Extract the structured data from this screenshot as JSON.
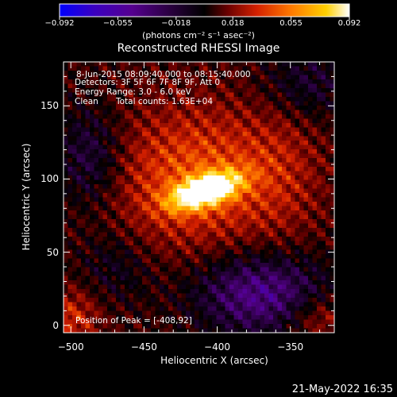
{
  "colorbar": {
    "min_label": "−0.092",
    "tick_labels": [
      "−0.092",
      "−0.055",
      "−0.018",
      "0.018",
      "0.055",
      "0.092"
    ],
    "tick_values": [
      -0.092,
      -0.055,
      -0.018,
      0.018,
      0.055,
      0.092
    ],
    "unit_label": "(photons cm⁻² s⁻¹ asec⁻²)",
    "palette": [
      "#0000ff",
      "#3b00c0",
      "#55008f",
      "#2a0040",
      "#000000",
      "#6a0000",
      "#d42000",
      "#ff7a00",
      "#ffd000",
      "#ffffff"
    ]
  },
  "chart_data": {
    "type": "heatmap",
    "title": "Reconstructed RHESSI Image",
    "xlabel": "Heliocentric X (arcsec)",
    "ylabel": "Heliocentric Y (arcsec)",
    "xlim": [
      -505,
      -320
    ],
    "ylim": [
      -5,
      180
    ],
    "x_ticks": [
      -500,
      -450,
      -400,
      -350
    ],
    "x_tick_labels": [
      "−500",
      "−450",
      "−400",
      "−350"
    ],
    "y_ticks": [
      0,
      50,
      100,
      150
    ],
    "y_tick_labels": [
      "0",
      "50",
      "100",
      "150"
    ],
    "value_range": [
      -0.092,
      0.092
    ],
    "peak_position": [
      -408,
      92
    ],
    "annotations": {
      "time_range": "8-Jun-2015 08:09:40.000 to 08:15:40.000",
      "detectors": "Detectors: 3F 5F 6F 7F 8F 9F, Att 0",
      "energy_range": "Energy Range: 3.0 - 6.0 keV",
      "clean_label": "Clean",
      "total_counts": "Total counts: 1.63E+04",
      "peak": "Position of Peak = [-408,92]"
    }
  },
  "footer": {
    "timestamp": "21-May-2022 16:35"
  }
}
